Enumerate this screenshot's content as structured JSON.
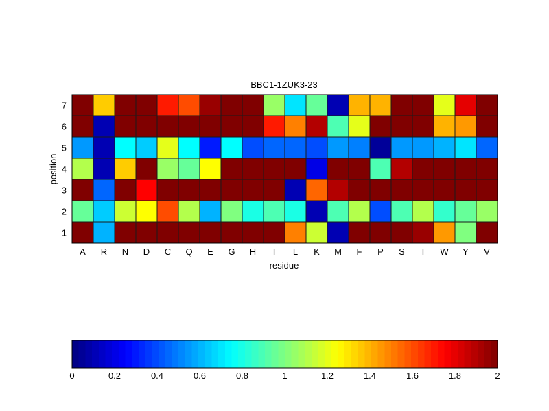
{
  "chart_data": {
    "type": "heatmap",
    "title": "BBC1-1ZUK3-23",
    "xlabel": "residue",
    "ylabel": "position",
    "categories": [
      "A",
      "R",
      "N",
      "D",
      "C",
      "Q",
      "E",
      "G",
      "H",
      "I",
      "L",
      "K",
      "M",
      "F",
      "P",
      "S",
      "T",
      "W",
      "Y",
      "V"
    ],
    "rows": [
      "1",
      "2",
      "3",
      "4",
      "5",
      "6",
      "7"
    ],
    "values": [
      [
        2.0,
        0.6,
        2.0,
        2.0,
        2.0,
        2.0,
        2.0,
        2.0,
        2.0,
        2.0,
        1.5,
        1.15,
        0.1,
        2.0,
        2.0,
        2.0,
        1.95,
        1.45,
        1.0,
        2.0
      ],
      [
        0.95,
        0.65,
        1.15,
        1.25,
        1.6,
        1.1,
        0.6,
        1.0,
        0.8,
        0.9,
        0.8,
        0.1,
        0.9,
        1.1,
        0.4,
        0.9,
        1.1,
        0.85,
        0.95,
        1.05
      ],
      [
        2.0,
        0.45,
        2.0,
        1.75,
        2.0,
        2.0,
        2.0,
        2.0,
        2.0,
        2.0,
        0.1,
        1.55,
        1.9,
        2.0,
        2.0,
        2.0,
        2.0,
        2.0,
        2.0,
        2.0
      ],
      [
        1.1,
        0.1,
        1.35,
        2.0,
        1.05,
        0.95,
        1.25,
        2.0,
        2.0,
        2.0,
        2.0,
        0.2,
        2.0,
        2.0,
        0.9,
        1.9,
        2.0,
        2.0,
        2.0,
        2.0
      ],
      [
        0.55,
        0.1,
        0.75,
        0.65,
        1.2,
        0.75,
        0.3,
        0.75,
        0.4,
        0.45,
        0.45,
        0.4,
        0.55,
        0.5,
        0.05,
        0.55,
        0.55,
        0.6,
        0.7,
        0.45
      ],
      [
        2.0,
        0.1,
        2.0,
        2.0,
        2.0,
        2.0,
        2.0,
        2.0,
        2.0,
        1.7,
        1.5,
        1.9,
        0.9,
        1.2,
        2.0,
        2.0,
        2.0,
        1.4,
        1.45,
        2.0
      ],
      [
        2.0,
        1.35,
        2.0,
        2.0,
        1.7,
        1.6,
        1.95,
        2.0,
        2.0,
        1.05,
        0.7,
        0.95,
        0.1,
        1.4,
        1.4,
        2.0,
        2.0,
        1.2,
        1.8,
        2.0
      ]
    ],
    "colormap": "jet",
    "clim": [
      0,
      2
    ],
    "colorbar_ticks": [
      "0",
      "0.2",
      "0.4",
      "0.6",
      "0.8",
      "1",
      "1.2",
      "1.4",
      "1.6",
      "1.8",
      "2"
    ]
  }
}
